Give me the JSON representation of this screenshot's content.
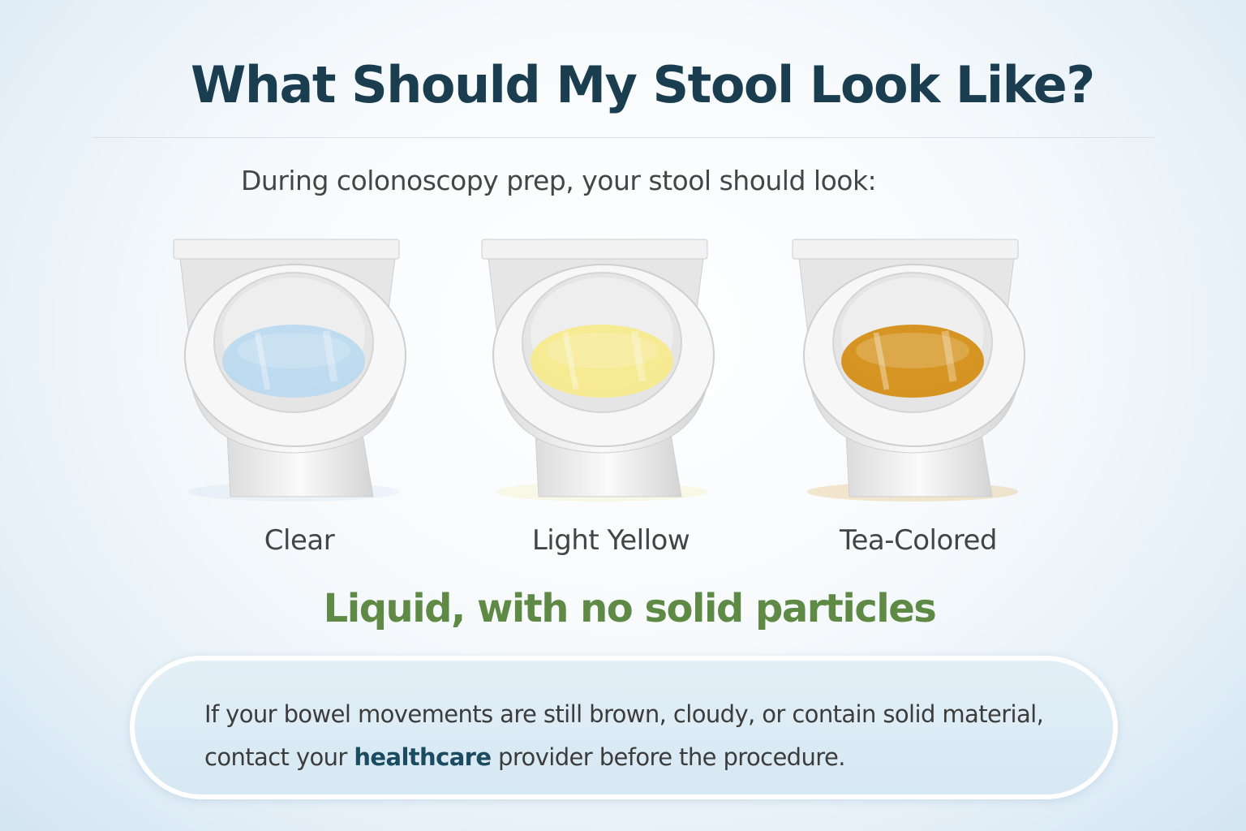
{
  "title": "What Should My Stool Look Like?",
  "subtitle": "During colonoscopy prep, your stool should look:",
  "options": [
    {
      "label": "Clear",
      "liquid_color": "#bcd9ef",
      "liquid_icon": "toilet-icon"
    },
    {
      "label": "Light Yellow",
      "liquid_color": "#f5e98c",
      "liquid_icon": "toilet-icon"
    },
    {
      "label": "Tea-Colored",
      "liquid_color": "#d48f16",
      "liquid_icon": "toilet-icon"
    }
  ],
  "tagline": "Liquid, with no solid particles",
  "note": {
    "line1": "If your bowel movements are still brown, cloudy, or contain solid material,",
    "line2_before": "contact your ",
    "line2_highlight": "healthcare",
    "line2_after": " provider before the procedure."
  },
  "colors": {
    "title": "#1a3d50",
    "tagline": "#5e8a45",
    "highlight": "#1b4b60"
  }
}
